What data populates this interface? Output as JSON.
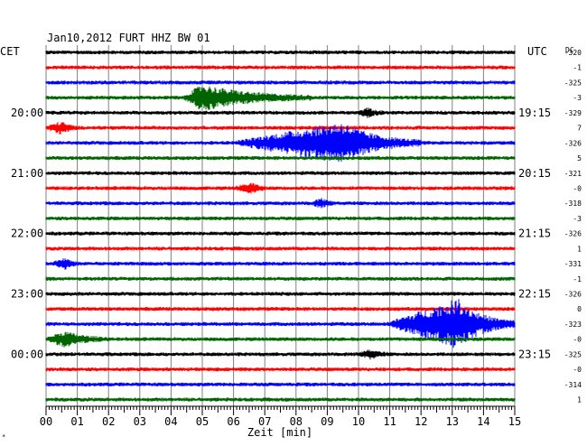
{
  "chart_data": {
    "type": "line",
    "header": "Jan10,2012   FURT HHZ BW 01",
    "left_zone": "CET",
    "right_zone": "UTC",
    "dc_label": "DC",
    "xlabel": "Zeit [min]",
    "x_ticks": [
      "00",
      "01",
      "02",
      "03",
      "04",
      "05",
      "06",
      "07",
      "08",
      "09",
      "10",
      "11",
      "12",
      "13",
      "14",
      "15"
    ],
    "xlim": [
      0,
      15
    ],
    "grid": true,
    "left_hour_labels": [
      {
        "trace": 4,
        "label": "20:00"
      },
      {
        "trace": 8,
        "label": "21:00"
      },
      {
        "trace": 12,
        "label": "22:00"
      },
      {
        "trace": 16,
        "label": "23:00"
      },
      {
        "trace": 20,
        "label": "00:00"
      }
    ],
    "right_hour_labels": [
      {
        "trace": 4,
        "label": "19:15"
      },
      {
        "trace": 8,
        "label": "20:15"
      },
      {
        "trace": 12,
        "label": "21:15"
      },
      {
        "trace": 16,
        "label": "22:15"
      },
      {
        "trace": 20,
        "label": "23:15"
      }
    ],
    "dc_values": [
      "-320",
      "-1",
      "-325",
      "-3",
      "-329",
      "7",
      "-326",
      "5",
      "-321",
      "-0",
      "-318",
      "-3",
      "-326",
      "1",
      "-331",
      "-1",
      "-326",
      "0",
      "-323",
      "-0",
      "-325",
      "-0",
      "-314",
      "1"
    ],
    "trace_colors": [
      "#000000",
      "#ff0000",
      "#0000ff",
      "#006400"
    ],
    "events": [
      {
        "trace": 3,
        "start_min": 4.4,
        "peak_min": 5.0,
        "end_min": 8.5,
        "amplitude": 0.8
      },
      {
        "trace": 5,
        "start_min": 0.0,
        "peak_min": 0.5,
        "end_min": 1.0,
        "amplitude": 0.35
      },
      {
        "trace": 6,
        "start_min": 6.0,
        "peak_min": 9.5,
        "end_min": 12.0,
        "amplitude": 1.3
      },
      {
        "trace": 4,
        "start_min": 10.0,
        "peak_min": 10.3,
        "end_min": 10.8,
        "amplitude": 0.25
      },
      {
        "trace": 9,
        "start_min": 6.0,
        "peak_min": 6.6,
        "end_min": 7.0,
        "amplitude": 0.28
      },
      {
        "trace": 10,
        "start_min": 8.5,
        "peak_min": 8.8,
        "end_min": 9.2,
        "amplitude": 0.25
      },
      {
        "trace": 14,
        "start_min": 0.2,
        "peak_min": 0.6,
        "end_min": 1.0,
        "amplitude": 0.3
      },
      {
        "trace": 18,
        "start_min": 10.9,
        "peak_min": 13.2,
        "end_min": 15.0,
        "amplitude": 1.6
      },
      {
        "trace": 19,
        "start_min": 0.0,
        "peak_min": 0.6,
        "end_min": 2.0,
        "amplitude": 0.45
      },
      {
        "trace": 20,
        "start_min": 10.0,
        "peak_min": 10.4,
        "end_min": 11.0,
        "amplitude": 0.25
      }
    ]
  }
}
